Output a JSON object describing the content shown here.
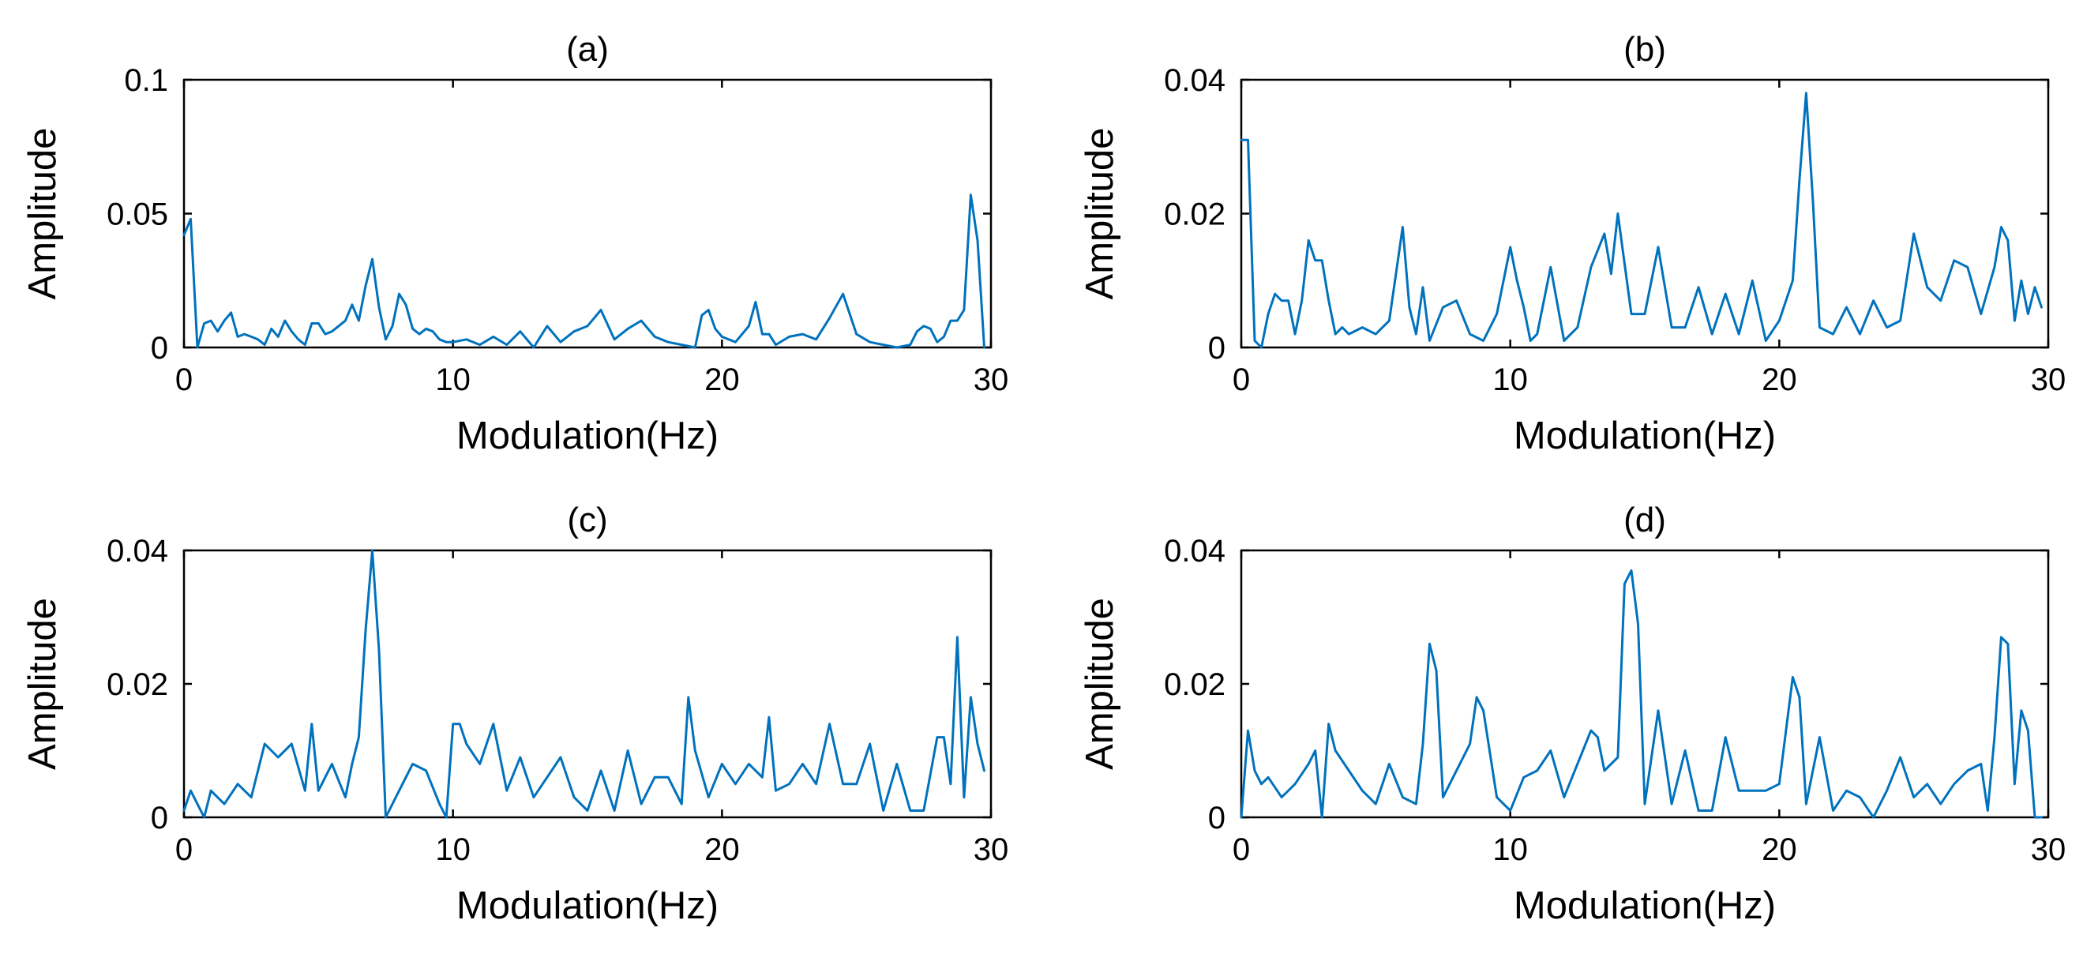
{
  "chart_data": [
    {
      "type": "line",
      "title": "(a)",
      "xlabel": "Modulation(Hz)",
      "ylabel": "Amplitude",
      "xlim": [
        0,
        30
      ],
      "ylim": [
        0,
        0.1
      ],
      "xticks": [
        0,
        10,
        20,
        30
      ],
      "xtick_labels": [
        "0",
        "10",
        "20",
        "30"
      ],
      "yticks": [
        0,
        0.05,
        0.1
      ],
      "ytick_labels": [
        "0",
        "0.05",
        "0.1"
      ],
      "series": [
        {
          "name": "a",
          "color": "#0072BD",
          "x": [
            0,
            0.25,
            0.5,
            0.75,
            1.0,
            1.25,
            1.5,
            1.75,
            2.0,
            2.25,
            2.5,
            2.75,
            3.0,
            3.25,
            3.5,
            3.75,
            4.0,
            4.25,
            4.5,
            4.75,
            5.0,
            5.25,
            5.5,
            5.75,
            6.0,
            6.25,
            6.5,
            6.75,
            7.0,
            7.25,
            7.5,
            7.75,
            8.0,
            8.25,
            8.5,
            8.75,
            9.0,
            9.25,
            9.5,
            9.75,
            10.0,
            10.5,
            11.0,
            11.5,
            12.0,
            12.5,
            13.0,
            13.5,
            14.0,
            14.5,
            15.0,
            15.5,
            16.0,
            16.5,
            17.0,
            17.5,
            18.0,
            18.5,
            19.0,
            19.25,
            19.5,
            19.75,
            20.0,
            20.5,
            21.0,
            21.25,
            21.5,
            21.75,
            22.0,
            22.5,
            23.0,
            23.5,
            24.0,
            24.5,
            25.0,
            25.5,
            26.0,
            26.5,
            27.0,
            27.25,
            27.5,
            27.75,
            28.0,
            28.25,
            28.5,
            28.75,
            29.0,
            29.25,
            29.5,
            29.75
          ],
          "y": [
            0.042,
            0.048,
            0.0,
            0.009,
            0.01,
            0.006,
            0.01,
            0.013,
            0.004,
            0.005,
            0.004,
            0.003,
            0.001,
            0.007,
            0.004,
            0.01,
            0.006,
            0.003,
            0.001,
            0.009,
            0.009,
            0.005,
            0.006,
            0.008,
            0.01,
            0.016,
            0.01,
            0.023,
            0.033,
            0.015,
            0.003,
            0.008,
            0.02,
            0.016,
            0.007,
            0.005,
            0.007,
            0.006,
            0.003,
            0.002,
            0.002,
            0.003,
            0.001,
            0.004,
            0.001,
            0.006,
            0.0,
            0.008,
            0.002,
            0.006,
            0.008,
            0.014,
            0.003,
            0.007,
            0.01,
            0.004,
            0.002,
            0.001,
            0.0,
            0.012,
            0.014,
            0.007,
            0.004,
            0.002,
            0.008,
            0.017,
            0.005,
            0.005,
            0.001,
            0.004,
            0.005,
            0.003,
            0.011,
            0.02,
            0.005,
            0.002,
            0.001,
            0.0,
            0.001,
            0.006,
            0.008,
            0.007,
            0.002,
            0.004,
            0.01,
            0.01,
            0.014,
            0.057,
            0.04,
            0.0
          ]
        }
      ]
    },
    {
      "type": "line",
      "title": "(b)",
      "xlabel": "Modulation(Hz)",
      "ylabel": "Amplitude",
      "xlim": [
        0,
        30
      ],
      "ylim": [
        0,
        0.04
      ],
      "xticks": [
        0,
        10,
        20,
        30
      ],
      "xtick_labels": [
        "0",
        "10",
        "20",
        "30"
      ],
      "yticks": [
        0,
        0.02,
        0.04
      ],
      "ytick_labels": [
        "0",
        "0.02",
        "0.04"
      ],
      "series": [
        {
          "name": "b",
          "color": "#0072BD",
          "x": [
            0,
            0.25,
            0.5,
            0.75,
            1.0,
            1.25,
            1.5,
            1.75,
            2.0,
            2.25,
            2.5,
            2.75,
            3.0,
            3.25,
            3.5,
            3.75,
            4.0,
            4.5,
            5.0,
            5.5,
            6.0,
            6.25,
            6.5,
            6.75,
            7.0,
            7.5,
            8.0,
            8.5,
            9.0,
            9.5,
            10.0,
            10.25,
            10.5,
            10.75,
            11.0,
            11.5,
            12.0,
            12.5,
            13.0,
            13.5,
            13.75,
            14.0,
            14.5,
            15.0,
            15.5,
            16.0,
            16.5,
            17.0,
            17.5,
            18.0,
            18.5,
            19.0,
            19.5,
            20.0,
            20.5,
            20.75,
            21.0,
            21.25,
            21.5,
            22.0,
            22.5,
            23.0,
            23.5,
            24.0,
            24.5,
            25.0,
            25.5,
            26.0,
            26.5,
            27.0,
            27.5,
            28.0,
            28.25,
            28.5,
            28.75,
            29.0,
            29.25,
            29.5,
            29.75
          ],
          "y": [
            0.031,
            0.031,
            0.001,
            0.0,
            0.005,
            0.008,
            0.007,
            0.007,
            0.002,
            0.007,
            0.016,
            0.013,
            0.013,
            0.007,
            0.002,
            0.003,
            0.002,
            0.003,
            0.002,
            0.004,
            0.018,
            0.006,
            0.002,
            0.009,
            0.001,
            0.006,
            0.007,
            0.002,
            0.001,
            0.005,
            0.015,
            0.01,
            0.006,
            0.001,
            0.002,
            0.012,
            0.001,
            0.003,
            0.012,
            0.017,
            0.011,
            0.02,
            0.005,
            0.005,
            0.015,
            0.003,
            0.003,
            0.009,
            0.002,
            0.008,
            0.002,
            0.01,
            0.001,
            0.004,
            0.01,
            0.025,
            0.038,
            0.022,
            0.003,
            0.002,
            0.006,
            0.002,
            0.007,
            0.003,
            0.004,
            0.017,
            0.009,
            0.007,
            0.013,
            0.012,
            0.005,
            0.012,
            0.018,
            0.016,
            0.004,
            0.01,
            0.005,
            0.009,
            0.006
          ]
        }
      ]
    },
    {
      "type": "line",
      "title": "(c)",
      "xlabel": "Modulation(Hz)",
      "ylabel": "Amplitude",
      "xlim": [
        0,
        30
      ],
      "ylim": [
        0,
        0.04
      ],
      "xticks": [
        0,
        10,
        20,
        30
      ],
      "xtick_labels": [
        "0",
        "10",
        "20",
        "30"
      ],
      "yticks": [
        0,
        0.02,
        0.04
      ],
      "ytick_labels": [
        "0",
        "0.02",
        "0.04"
      ],
      "series": [
        {
          "name": "c",
          "color": "#0072BD",
          "x": [
            0,
            0.25,
            0.5,
            0.75,
            1.0,
            1.5,
            2.0,
            2.5,
            3.0,
            3.5,
            4.0,
            4.5,
            4.75,
            5.0,
            5.5,
            6.0,
            6.25,
            6.5,
            6.75,
            7.0,
            7.25,
            7.5,
            8.0,
            8.5,
            9.0,
            9.5,
            9.75,
            10.0,
            10.25,
            10.5,
            11.0,
            11.5,
            12.0,
            12.5,
            13.0,
            13.5,
            14.0,
            14.5,
            15.0,
            15.5,
            16.0,
            16.5,
            17.0,
            17.5,
            18.0,
            18.5,
            18.75,
            19.0,
            19.5,
            20.0,
            20.5,
            21.0,
            21.5,
            21.75,
            22.0,
            22.5,
            23.0,
            23.5,
            24.0,
            24.5,
            25.0,
            25.5,
            26.0,
            26.5,
            27.0,
            27.5,
            28.0,
            28.25,
            28.5,
            28.75,
            29.0,
            29.25,
            29.5,
            29.75
          ],
          "y": [
            0.001,
            0.004,
            0.002,
            0.0,
            0.004,
            0.002,
            0.005,
            0.003,
            0.011,
            0.009,
            0.011,
            0.004,
            0.014,
            0.004,
            0.008,
            0.003,
            0.008,
            0.012,
            0.028,
            0.04,
            0.025,
            0.0,
            0.004,
            0.008,
            0.007,
            0.002,
            0.0,
            0.014,
            0.014,
            0.011,
            0.008,
            0.014,
            0.004,
            0.009,
            0.003,
            0.006,
            0.009,
            0.003,
            0.001,
            0.007,
            0.001,
            0.01,
            0.002,
            0.006,
            0.006,
            0.002,
            0.018,
            0.01,
            0.003,
            0.008,
            0.005,
            0.008,
            0.006,
            0.015,
            0.004,
            0.005,
            0.008,
            0.005,
            0.014,
            0.005,
            0.005,
            0.011,
            0.001,
            0.008,
            0.001,
            0.001,
            0.012,
            0.012,
            0.005,
            0.027,
            0.003,
            0.018,
            0.011,
            0.007
          ]
        }
      ]
    },
    {
      "type": "line",
      "title": "(d)",
      "xlabel": "Modulation(Hz)",
      "ylabel": "Amplitude",
      "xlim": [
        0,
        30
      ],
      "ylim": [
        0,
        0.04
      ],
      "xticks": [
        0,
        10,
        20,
        30
      ],
      "xtick_labels": [
        "0",
        "10",
        "20",
        "30"
      ],
      "yticks": [
        0,
        0.02,
        0.04
      ],
      "ytick_labels": [
        "0",
        "0.02",
        "0.04"
      ],
      "series": [
        {
          "name": "d",
          "color": "#0072BD",
          "x": [
            0,
            0.25,
            0.5,
            0.75,
            1.0,
            1.5,
            2.0,
            2.5,
            2.75,
            3.0,
            3.25,
            3.5,
            4.0,
            4.5,
            5.0,
            5.5,
            6.0,
            6.5,
            6.75,
            7.0,
            7.25,
            7.5,
            8.0,
            8.5,
            8.75,
            9.0,
            9.5,
            10.0,
            10.5,
            11.0,
            11.5,
            12.0,
            12.5,
            13.0,
            13.25,
            13.5,
            14.0,
            14.25,
            14.5,
            14.75,
            15.0,
            15.5,
            16.0,
            16.5,
            17.0,
            17.5,
            18.0,
            18.5,
            19.0,
            19.5,
            20.0,
            20.5,
            20.75,
            21.0,
            21.5,
            22.0,
            22.5,
            23.0,
            23.5,
            24.0,
            24.5,
            25.0,
            25.5,
            26.0,
            26.5,
            27.0,
            27.5,
            27.75,
            28.0,
            28.25,
            28.5,
            28.75,
            29.0,
            29.25,
            29.5,
            29.75
          ],
          "y": [
            0.0,
            0.013,
            0.007,
            0.005,
            0.006,
            0.003,
            0.005,
            0.008,
            0.01,
            0.0,
            0.014,
            0.01,
            0.007,
            0.004,
            0.002,
            0.008,
            0.003,
            0.002,
            0.011,
            0.026,
            0.022,
            0.003,
            0.007,
            0.011,
            0.018,
            0.016,
            0.003,
            0.001,
            0.006,
            0.007,
            0.01,
            0.003,
            0.008,
            0.013,
            0.012,
            0.007,
            0.009,
            0.035,
            0.037,
            0.029,
            0.002,
            0.016,
            0.002,
            0.01,
            0.001,
            0.001,
            0.012,
            0.004,
            0.004,
            0.004,
            0.005,
            0.021,
            0.018,
            0.002,
            0.012,
            0.001,
            0.004,
            0.003,
            0.0,
            0.004,
            0.009,
            0.003,
            0.005,
            0.002,
            0.005,
            0.007,
            0.008,
            0.001,
            0.012,
            0.027,
            0.026,
            0.005,
            0.016,
            0.013,
            0.0,
            0.0
          ]
        }
      ]
    }
  ]
}
